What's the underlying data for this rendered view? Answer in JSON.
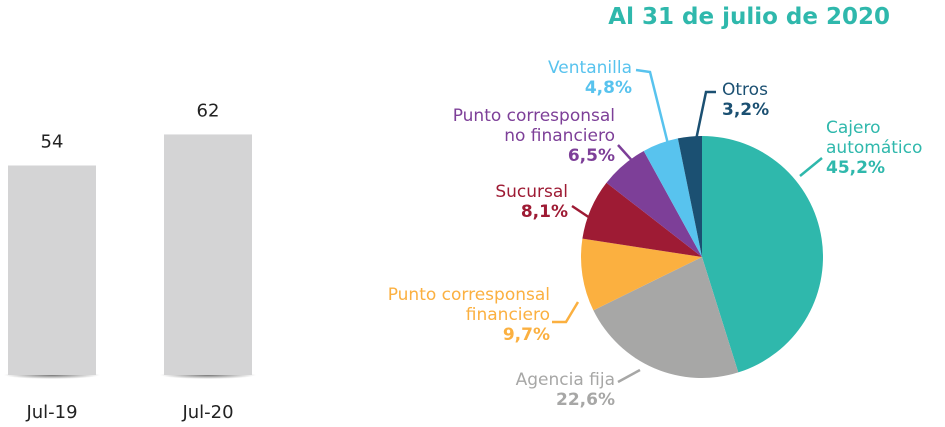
{
  "chart_data": [
    {
      "type": "bar",
      "categories": [
        "Jul-19",
        "Jul-20"
      ],
      "values": [
        54,
        62
      ],
      "color": "#d4d4d5"
    },
    {
      "type": "pie",
      "title": "Al 31 de julio de 2020",
      "categories": [
        "Cajero\nautomático",
        "Agencia fija",
        "Punto corresponsal\nfinanciero",
        "Sucursal",
        "Punto corresponsal\nno financiero",
        "Ventanilla",
        "Otros"
      ],
      "values": [
        45.2,
        22.6,
        9.7,
        8.1,
        6.5,
        4.8,
        3.2
      ],
      "value_labels": [
        "45,2%",
        "22,6%",
        "9,7%",
        "8,1%",
        "6,5%",
        "4,8%",
        "3,2%"
      ],
      "colors": [
        "#2fb8ac",
        "#a7a7a6",
        "#fbb040",
        "#9e1b34",
        "#7d3f98",
        "#58c3ee",
        "#1b5072"
      ]
    }
  ]
}
